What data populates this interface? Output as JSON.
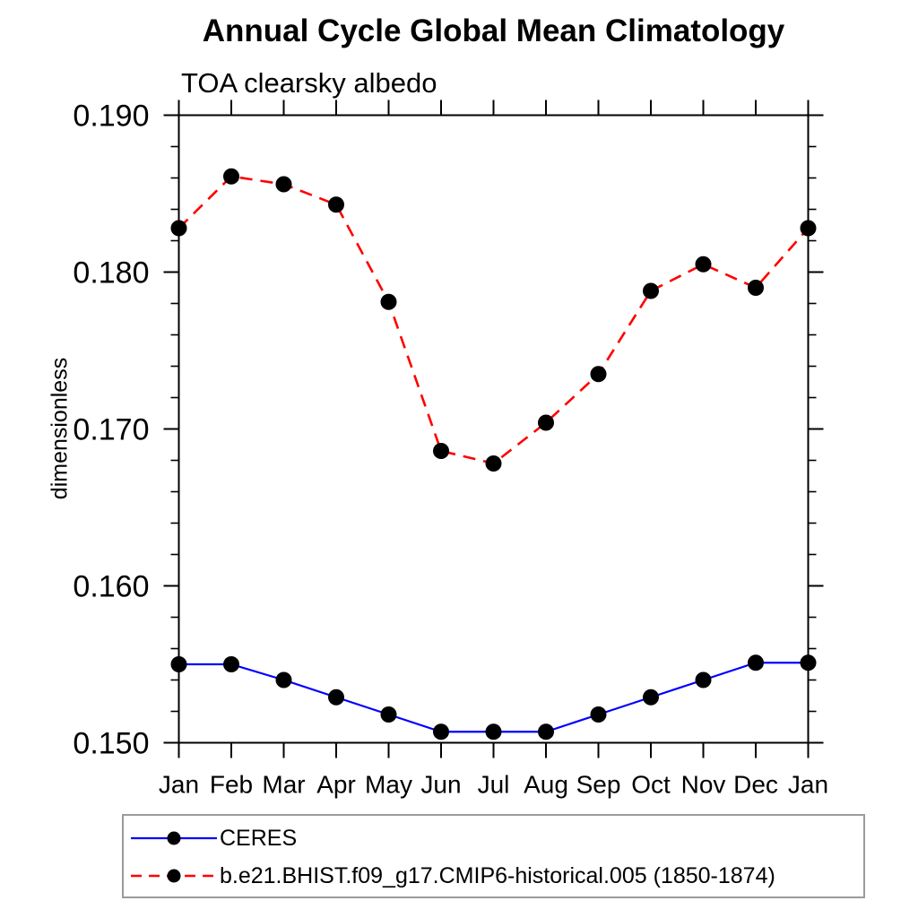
{
  "chart_data": {
    "type": "line",
    "title": "Annual Cycle Global Mean Climatology",
    "subtitle": "TOA clearsky albedo",
    "xlabel": "",
    "ylabel": "dimensionless",
    "categories": [
      "Jan",
      "Feb",
      "Mar",
      "Apr",
      "May",
      "Jun",
      "Jul",
      "Aug",
      "Sep",
      "Oct",
      "Nov",
      "Dec",
      "Jan"
    ],
    "ylim": [
      0.15,
      0.19
    ],
    "ytick_major_labels": [
      "0.150",
      "0.160",
      "0.170",
      "0.180",
      "0.190"
    ],
    "ytick_major_values": [
      0.15,
      0.16,
      0.17,
      0.18,
      0.19
    ],
    "ytick_minor_step": 0.002,
    "grid": false,
    "legend_position": "bottom-left",
    "series": [
      {
        "name": "CERES",
        "color": "#0000ff",
        "line_style": "solid",
        "marker": "black-dot",
        "values": [
          0.155,
          0.155,
          0.154,
          0.1529,
          0.1518,
          0.1507,
          0.1507,
          0.1507,
          0.1518,
          0.1529,
          0.154,
          0.1551,
          0.1551
        ]
      },
      {
        "name": "b.e21.BHIST.f09_g17.CMIP6-historical.005 (1850-1874)",
        "color": "#ff0000",
        "line_style": "dashed",
        "marker": "black-dot",
        "values": [
          0.1828,
          0.1861,
          0.1856,
          0.1843,
          0.1781,
          0.1686,
          0.1678,
          0.1704,
          0.1735,
          0.1788,
          0.1805,
          0.179,
          0.1828
        ]
      }
    ]
  },
  "colors": {
    "axis": "#000000",
    "marker_fill": "#000000",
    "legend_border": "#9b9b9b",
    "background": "#ffffff"
  }
}
